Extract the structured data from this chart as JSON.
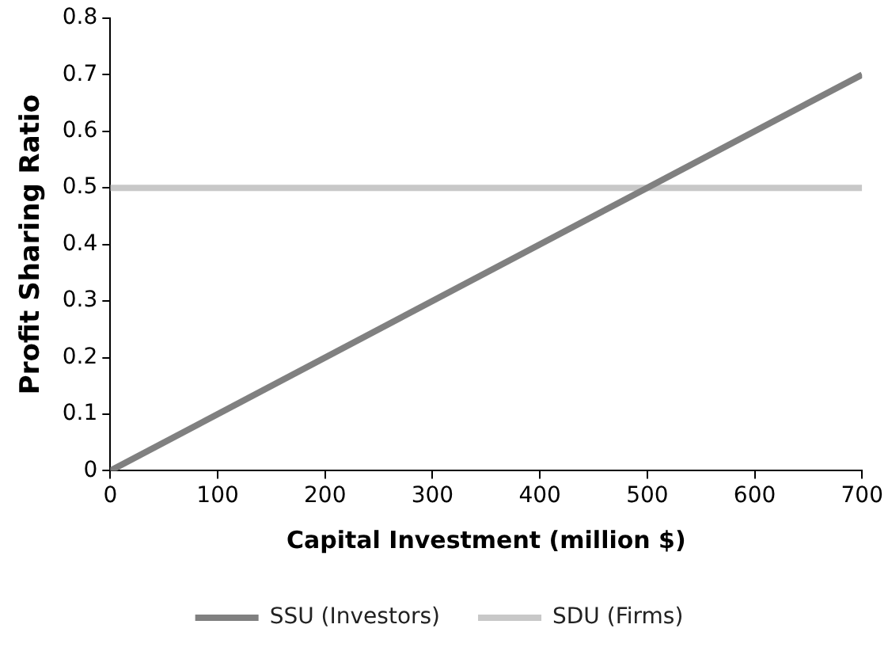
{
  "chart_data": {
    "type": "line",
    "xlabel": "Capital Investment (million $)",
    "ylabel": "Profit Sharing Ratio",
    "x": [
      0,
      700
    ],
    "xlim": [
      0,
      700
    ],
    "xticks": [
      0,
      100,
      200,
      300,
      400,
      500,
      600,
      700
    ],
    "ylim": [
      0,
      0.8
    ],
    "yticks": [
      0,
      0.1,
      0.2,
      0.3,
      0.4,
      0.5,
      0.6,
      0.7,
      0.8
    ],
    "series": [
      {
        "name": "SSU (Investors)",
        "color": "#808080",
        "values": [
          0,
          0.7
        ]
      },
      {
        "name": "SDU (Firms)",
        "color": "#c8c8c8",
        "values": [
          0.5,
          0.5
        ]
      }
    ],
    "grid": false,
    "legend": "bottom",
    "marker": "none",
    "line_style": "solid"
  }
}
